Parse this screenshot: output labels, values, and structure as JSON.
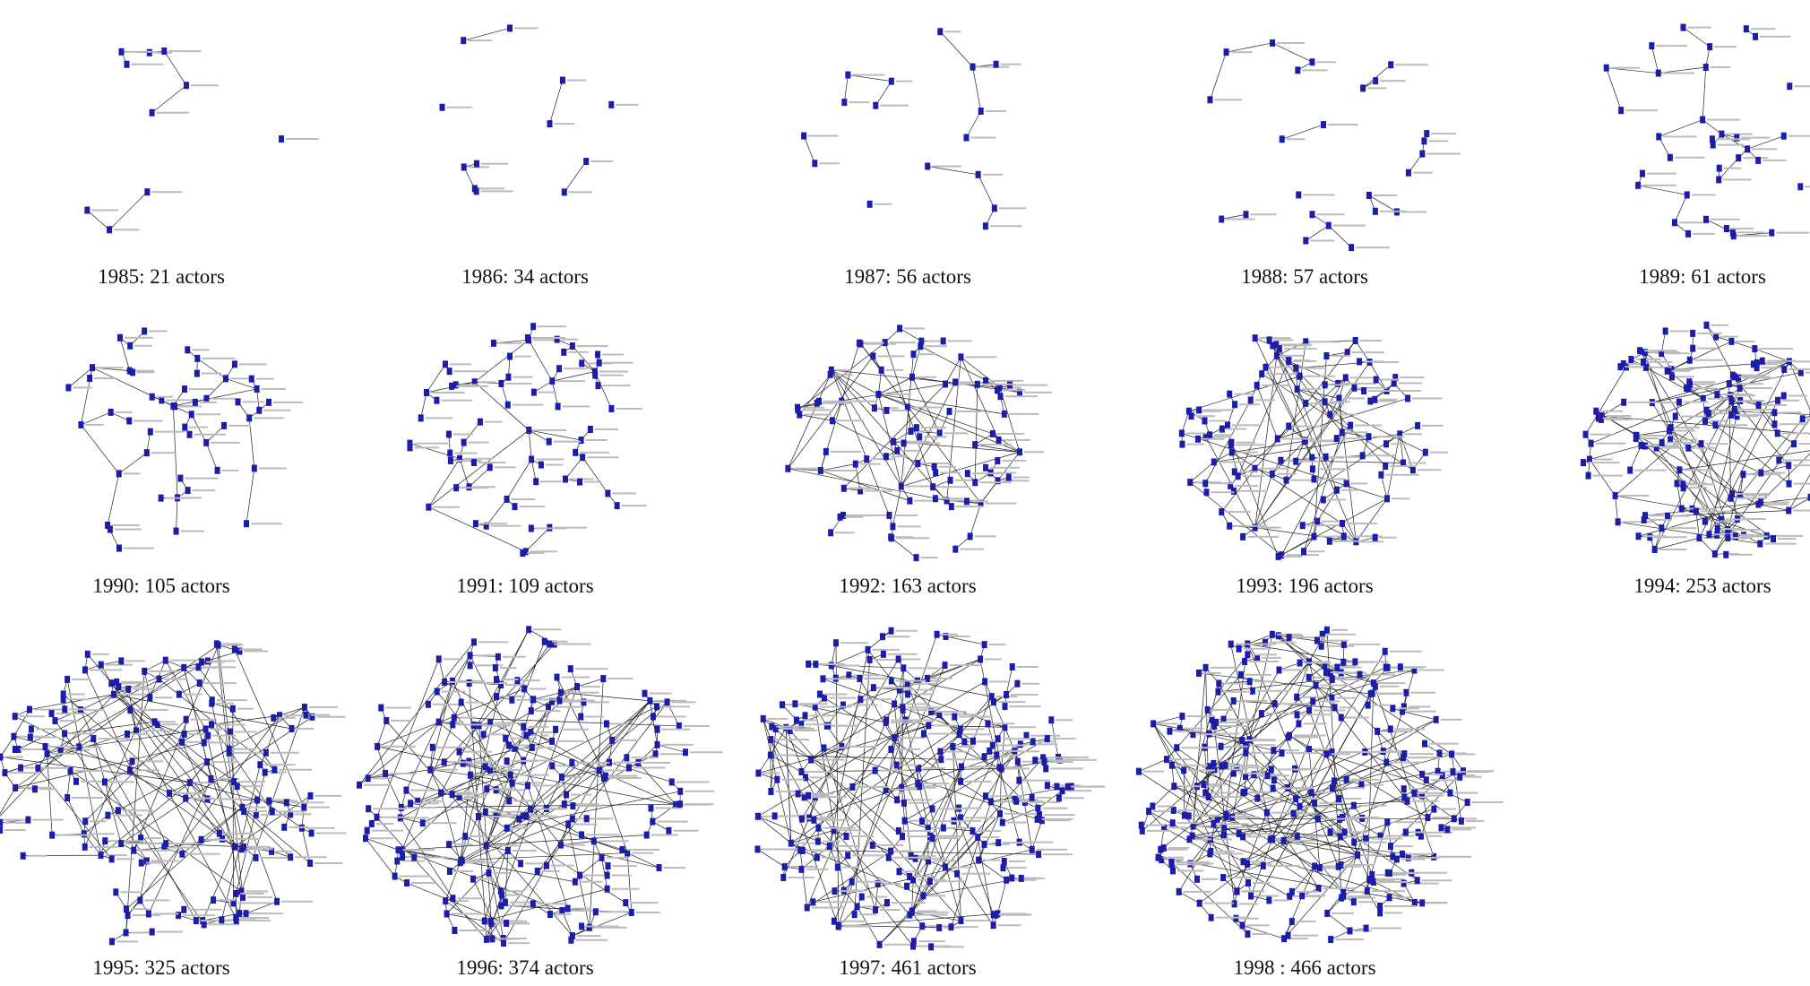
{
  "panels": [
    {
      "caption": "1985: 21 actors"
    },
    {
      "caption": "1986: 34 actors"
    },
    {
      "caption": "1987: 56 actors"
    },
    {
      "caption": "1988: 57 actors"
    },
    {
      "caption": "1989: 61 actors"
    },
    {
      "caption": "1990: 105 actors"
    },
    {
      "caption": "1991: 109 actors"
    },
    {
      "caption": "1992: 163 actors"
    },
    {
      "caption": "1993: 196 actors"
    },
    {
      "caption": "1994: 253 actors"
    },
    {
      "caption": "1995: 325 actors"
    },
    {
      "caption": "1996: 374 actors"
    },
    {
      "caption": "1997: 461 actors"
    },
    {
      "caption": "1998 : 466 actors"
    }
  ]
}
